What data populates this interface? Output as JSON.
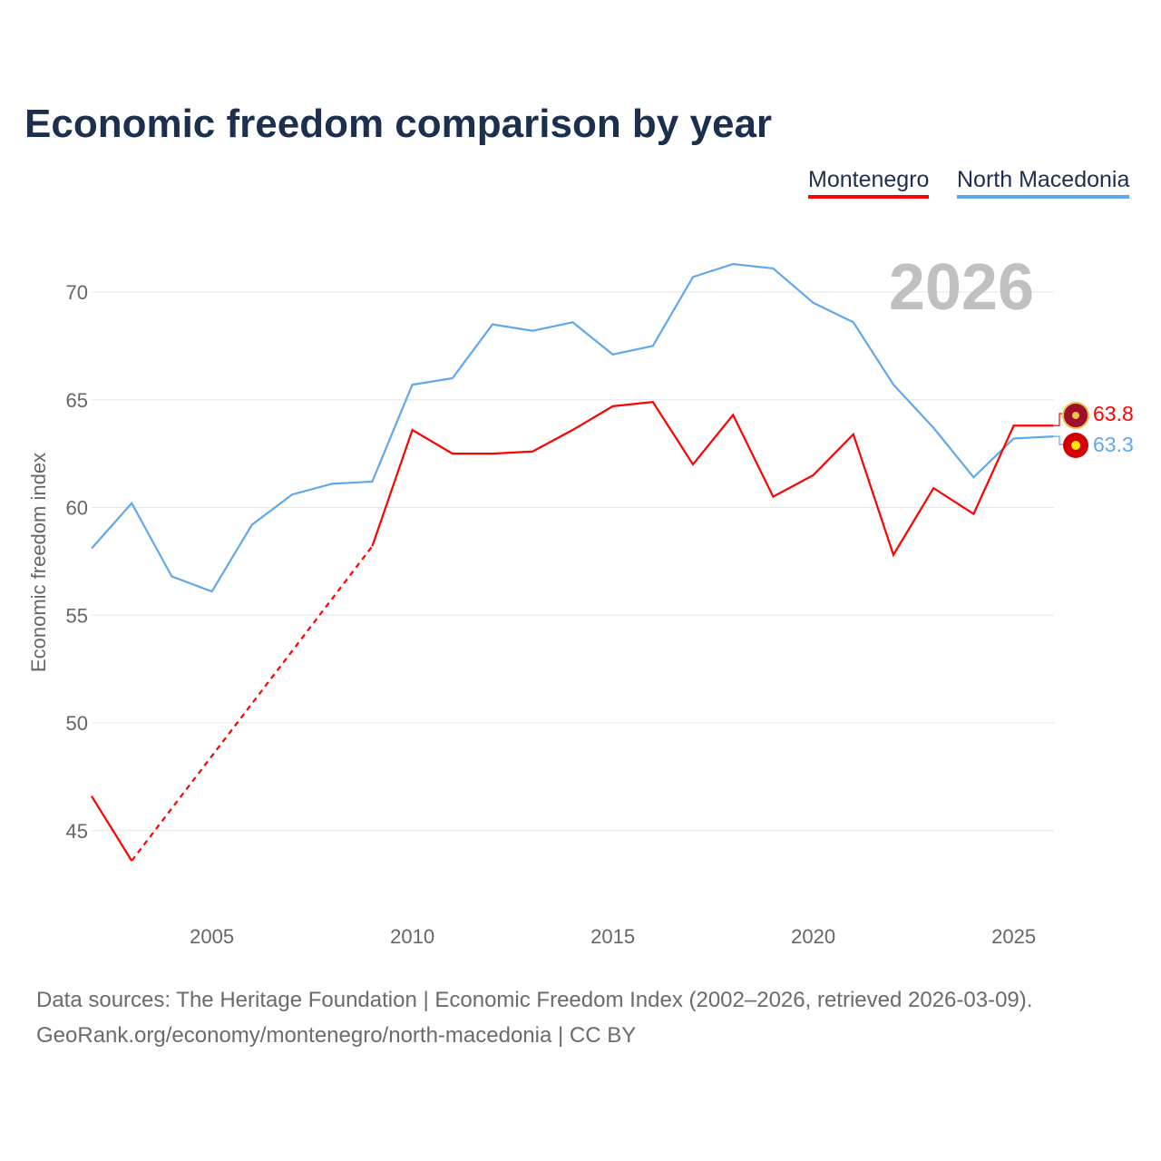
{
  "chart_data": {
    "type": "line",
    "title": "Economic freedom comparison by year",
    "xlabel": "",
    "ylabel": "Economic freedom index",
    "watermark_year": "2026",
    "xlim": [
      2002,
      2026
    ],
    "ylim": [
      41,
      73
    ],
    "x_ticks": [
      2005,
      2010,
      2015,
      2020,
      2025
    ],
    "y_ticks": [
      45,
      50,
      55,
      60,
      65,
      70
    ],
    "grid": true,
    "legend_position": "top-right",
    "x": [
      2002,
      2003,
      2004,
      2005,
      2006,
      2007,
      2008,
      2009,
      2010,
      2011,
      2012,
      2013,
      2014,
      2015,
      2016,
      2017,
      2018,
      2019,
      2020,
      2021,
      2022,
      2023,
      2024,
      2025,
      2026
    ],
    "series": [
      {
        "name": "Montenegro",
        "color": "#ff0000",
        "end_label": "63.8",
        "values": [
          46.6,
          43.6,
          null,
          null,
          null,
          null,
          null,
          58.2,
          63.6,
          62.5,
          62.5,
          62.6,
          63.6,
          64.7,
          64.9,
          62.0,
          64.3,
          60.5,
          61.5,
          63.4,
          57.8,
          60.9,
          59.7,
          63.8,
          63.8
        ]
      },
      {
        "name": "North Macedonia",
        "color": "#5fa8ec",
        "end_label": "63.3",
        "values": [
          58.1,
          60.2,
          56.8,
          56.1,
          59.2,
          60.6,
          61.1,
          61.2,
          65.7,
          66.0,
          68.5,
          68.2,
          68.6,
          67.1,
          67.5,
          70.7,
          71.3,
          71.1,
          69.5,
          68.6,
          65.7,
          63.7,
          61.4,
          63.2,
          63.3
        ]
      }
    ]
  },
  "footer": {
    "line1": "Data sources: The Heritage Foundation | Economic Freedom Index (2002–2026, retrieved 2026-03-09).",
    "line2": "GeoRank.org/economy/montenegro/north-macedonia | CC BY"
  }
}
